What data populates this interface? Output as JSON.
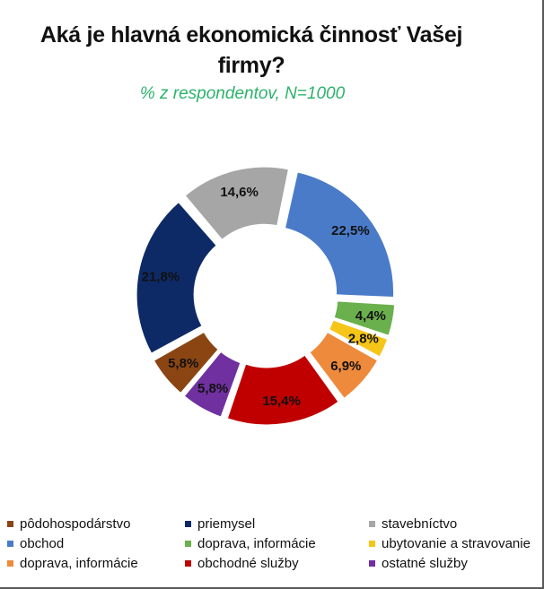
{
  "title": "Aká je hlavná ekonomická činnosť Vašej firmy?",
  "subtitle": "% z respondentov, N=1000",
  "colors": {
    "subtitle": "#2bb36b",
    "label_text": "#111111"
  },
  "chart_data": {
    "type": "pie",
    "variant": "donut",
    "title": "Aká je hlavná ekonomická činnosť Vašej firmy?",
    "subtitle": "% z respondentov, N=1000",
    "unit": "%",
    "slices": [
      {
        "name": "obchod",
        "value": 22.5,
        "label": "22,5%",
        "color": "#4a7bc8"
      },
      {
        "name": "doprava, informácie",
        "value": 4.4,
        "label": "4,4%",
        "color": "#6ab04c"
      },
      {
        "name": "ubytovanie a stravovanie",
        "value": 2.8,
        "label": "2,8%",
        "color": "#f5c518"
      },
      {
        "name": "doprava, informácie",
        "value": 6.9,
        "label": "6,9%",
        "color": "#ee8a3c"
      },
      {
        "name": "obchodné služby",
        "value": 15.4,
        "label": "15,4%",
        "color": "#c00000"
      },
      {
        "name": "ostatné služby",
        "value": 5.8,
        "label": "5,8%",
        "color": "#7030a0"
      },
      {
        "name": "pôdohospodárstvo",
        "value": 5.8,
        "label": "5,8%",
        "color": "#8b4513"
      },
      {
        "name": "priemysel",
        "value": 21.8,
        "label": "21,8%",
        "color": "#0d2a66"
      },
      {
        "name": "stavebníctvo",
        "value": 14.6,
        "label": "14,6%",
        "color": "#a6a6a6"
      }
    ],
    "legend": {
      "position": "bottom",
      "items": [
        {
          "label": "pôdohospodárstvo",
          "color": "#8b4513"
        },
        {
          "label": "priemysel",
          "color": "#0d2a66"
        },
        {
          "label": "stavebníctvo",
          "color": "#a6a6a6"
        },
        {
          "label": "obchod",
          "color": "#4a7bc8"
        },
        {
          "label": "doprava, informácie",
          "color": "#6ab04c"
        },
        {
          "label": "ubytovanie a stravovanie",
          "color": "#f5c518"
        },
        {
          "label": "doprava, informácie",
          "color": "#ee8a3c"
        },
        {
          "label": "obchodné služby",
          "color": "#c00000"
        },
        {
          "label": "ostatné služby",
          "color": "#7030a0"
        }
      ]
    }
  }
}
